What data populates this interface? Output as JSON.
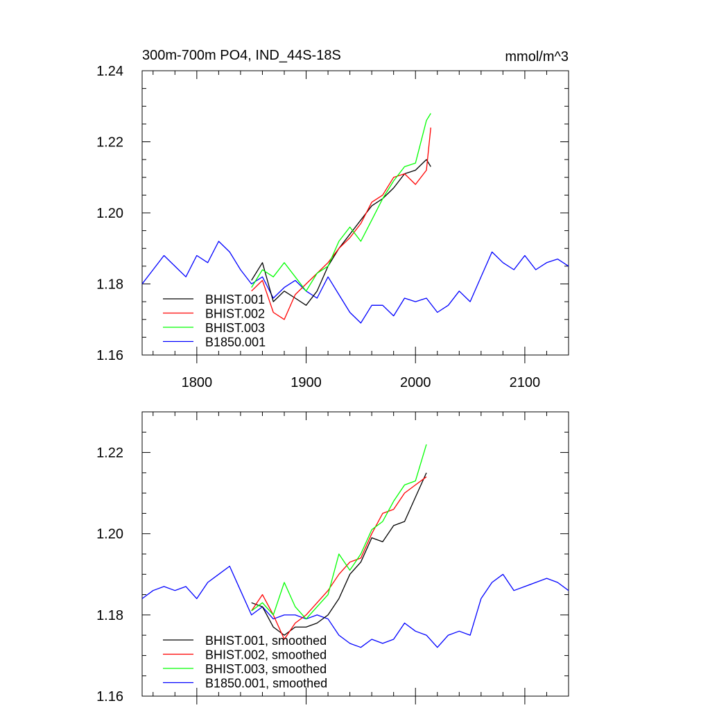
{
  "chart_data": [
    {
      "type": "line",
      "title": "300m-700m PO4, IND_44S-18S",
      "units": "mmol/m^3",
      "xlim": [
        1750,
        2140
      ],
      "ylim": [
        1.16,
        1.24
      ],
      "yticks": [
        "1.16",
        "1.18",
        "1.20",
        "1.22",
        "1.24"
      ],
      "xticks": [
        "1800",
        "1900",
        "2000",
        "2100"
      ],
      "legend_position": "bottom-left",
      "series": [
        {
          "name": "BHIST.001",
          "color": "#000000",
          "x": [
            1850,
            1860,
            1870,
            1880,
            1890,
            1900,
            1910,
            1920,
            1930,
            1940,
            1950,
            1960,
            1970,
            1980,
            1990,
            2000,
            2010,
            2014
          ],
          "y": [
            1.181,
            1.186,
            1.175,
            1.178,
            1.176,
            1.174,
            1.178,
            1.185,
            1.19,
            1.194,
            1.198,
            1.202,
            1.204,
            1.207,
            1.211,
            1.212,
            1.215,
            1.213
          ]
        },
        {
          "name": "BHIST.002",
          "color": "#ff0000",
          "x": [
            1850,
            1860,
            1870,
            1880,
            1890,
            1900,
            1910,
            1920,
            1930,
            1940,
            1950,
            1960,
            1970,
            1980,
            1990,
            2000,
            2010,
            2014
          ],
          "y": [
            1.178,
            1.181,
            1.172,
            1.17,
            1.177,
            1.18,
            1.183,
            1.186,
            1.19,
            1.193,
            1.197,
            1.203,
            1.205,
            1.21,
            1.211,
            1.208,
            1.212,
            1.224
          ]
        },
        {
          "name": "BHIST.003",
          "color": "#00ff00",
          "x": [
            1850,
            1860,
            1870,
            1880,
            1890,
            1900,
            1910,
            1920,
            1930,
            1940,
            1950,
            1960,
            1970,
            1980,
            1990,
            2000,
            2010,
            2014
          ],
          "y": [
            1.179,
            1.184,
            1.182,
            1.186,
            1.182,
            1.178,
            1.183,
            1.185,
            1.192,
            1.196,
            1.192,
            1.198,
            1.204,
            1.209,
            1.213,
            1.214,
            1.226,
            1.228
          ]
        },
        {
          "name": "B1850.001",
          "color": "#0000ff",
          "x": [
            1750,
            1760,
            1770,
            1780,
            1790,
            1800,
            1810,
            1820,
            1830,
            1840,
            1850,
            1860,
            1870,
            1880,
            1890,
            1900,
            1910,
            1920,
            1930,
            1940,
            1950,
            1960,
            1970,
            1980,
            1990,
            2000,
            2010,
            2020,
            2030,
            2040,
            2050,
            2060,
            2070,
            2080,
            2090,
            2100,
            2110,
            2120,
            2130,
            2140
          ],
          "y": [
            1.18,
            1.184,
            1.188,
            1.185,
            1.182,
            1.188,
            1.186,
            1.192,
            1.189,
            1.184,
            1.18,
            1.182,
            1.176,
            1.179,
            1.181,
            1.178,
            1.176,
            1.182,
            1.177,
            1.172,
            1.169,
            1.174,
            1.174,
            1.171,
            1.176,
            1.175,
            1.176,
            1.172,
            1.174,
            1.178,
            1.175,
            1.182,
            1.189,
            1.186,
            1.184,
            1.188,
            1.184,
            1.186,
            1.187,
            1.185
          ]
        }
      ]
    },
    {
      "type": "line",
      "title": "",
      "xlim": [
        1750,
        2140
      ],
      "ylim": [
        1.16,
        1.23
      ],
      "yticks": [
        "1.16",
        "1.18",
        "1.20",
        "1.22"
      ],
      "legend_position": "bottom-left",
      "series": [
        {
          "name": "BHIST.001, smoothed",
          "color": "#000000",
          "x": [
            1850,
            1860,
            1870,
            1880,
            1890,
            1900,
            1910,
            1920,
            1930,
            1940,
            1950,
            1960,
            1970,
            1980,
            1990,
            2000,
            2010
          ],
          "y": [
            1.183,
            1.182,
            1.177,
            1.175,
            1.177,
            1.177,
            1.178,
            1.18,
            1.184,
            1.19,
            1.193,
            1.199,
            1.198,
            1.202,
            1.203,
            1.209,
            1.215
          ]
        },
        {
          "name": "BHIST.002, smoothed",
          "color": "#ff0000",
          "x": [
            1850,
            1860,
            1870,
            1880,
            1890,
            1900,
            1910,
            1920,
            1930,
            1940,
            1950,
            1960,
            1970,
            1980,
            1990,
            2000,
            2010
          ],
          "y": [
            1.181,
            1.185,
            1.18,
            1.174,
            1.178,
            1.18,
            1.183,
            1.186,
            1.19,
            1.193,
            1.194,
            1.2,
            1.205,
            1.206,
            1.21,
            1.212,
            1.214
          ]
        },
        {
          "name": "BHIST.003, smoothed",
          "color": "#00ff00",
          "x": [
            1850,
            1860,
            1870,
            1880,
            1890,
            1900,
            1910,
            1920,
            1930,
            1940,
            1950,
            1960,
            1970,
            1980,
            1990,
            2000,
            2010
          ],
          "y": [
            1.181,
            1.183,
            1.18,
            1.188,
            1.182,
            1.179,
            1.182,
            1.185,
            1.195,
            1.191,
            1.195,
            1.201,
            1.203,
            1.208,
            1.212,
            1.213,
            1.222
          ]
        },
        {
          "name": "B1850.001, smoothed",
          "color": "#0000ff",
          "x": [
            1750,
            1760,
            1770,
            1780,
            1790,
            1800,
            1810,
            1820,
            1830,
            1840,
            1850,
            1860,
            1870,
            1880,
            1890,
            1900,
            1910,
            1920,
            1930,
            1940,
            1950,
            1960,
            1970,
            1980,
            1990,
            2000,
            2010,
            2020,
            2030,
            2040,
            2050,
            2060,
            2070,
            2080,
            2090,
            2100,
            2110,
            2120,
            2130,
            2140
          ],
          "y": [
            1.184,
            1.186,
            1.187,
            1.186,
            1.187,
            1.184,
            1.188,
            1.19,
            1.192,
            1.186,
            1.18,
            1.182,
            1.179,
            1.18,
            1.18,
            1.179,
            1.18,
            1.179,
            1.175,
            1.173,
            1.172,
            1.174,
            1.173,
            1.174,
            1.178,
            1.176,
            1.175,
            1.172,
            1.175,
            1.176,
            1.175,
            1.184,
            1.188,
            1.19,
            1.186,
            1.187,
            1.188,
            1.189,
            1.188,
            1.186
          ]
        }
      ]
    }
  ]
}
